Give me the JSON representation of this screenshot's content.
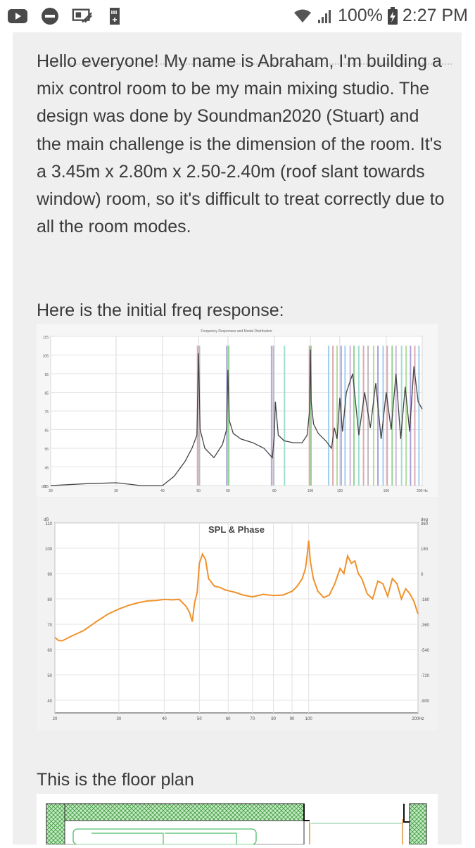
{
  "status_bar": {
    "battery": "100%",
    "time": "2:27 PM",
    "icons": [
      "youtube-icon",
      "do-not-disturb-icon",
      "vpn-icon",
      "sd-card-icon",
      "wifi-icon",
      "cellular-signal-icon",
      "battery-charging-icon"
    ]
  },
  "post": {
    "intro": "Hello everyone! My name is Abraham, I'm building a mix control room to be my main mixing studio. The design was done by Soundman2020 (Stuart) and the main challenge is the dimension of the room. It's a 3.45m x 2.80m x 2.50-2.40m (roof slant towards window) room, so it's difficult to treat correctly due to all the room modes.",
    "freq_caption": "Here is the initial freq response:",
    "floor_caption": "This is the floor plan"
  },
  "chart_data": [
    {
      "type": "line",
      "title": "Frequency Responses and Modal Distribution",
      "y_ticks": [
        "115",
        "105",
        "95",
        "85",
        "75",
        "65",
        "55",
        "45",
        "35"
      ],
      "y_corner_label": "dB",
      "x_ticks": [
        "20",
        "30",
        "40",
        "50",
        "60",
        "80",
        "100",
        "120",
        "160",
        "200 Hz"
      ],
      "ylim": [
        35,
        115
      ],
      "x_scale": "log",
      "xlim": [
        20,
        200
      ],
      "grid": true,
      "series": [
        {
          "x": [
            20,
            25,
            30,
            35,
            40,
            43,
            46,
            48,
            49.5,
            50,
            50.5,
            52,
            55,
            58,
            59.5,
            60,
            60.5,
            62,
            65,
            70,
            75,
            79,
            80,
            80.5,
            82,
            85,
            90,
            95,
            98,
            99.5,
            100,
            100.5,
            102,
            105,
            110,
            114,
            116,
            118,
            120,
            122,
            125,
            130,
            135,
            140,
            145,
            150,
            155,
            160,
            165,
            170,
            175,
            180,
            185,
            190,
            195,
            200
          ],
          "y": [
            35,
            36,
            36.5,
            35,
            35,
            40,
            48,
            55,
            62,
            106,
            65,
            55,
            50,
            57,
            65,
            97,
            70,
            63,
            60,
            58,
            55,
            50,
            62,
            80,
            62,
            59,
            58,
            58,
            62,
            75,
            108,
            80,
            68,
            63,
            59,
            55,
            66,
            60,
            82,
            64,
            85,
            95,
            62,
            85,
            66,
            90,
            60,
            85,
            65,
            95,
            60,
            88,
            64,
            99,
            80,
            76
          ]
        }
      ],
      "modal_lines": [
        {
          "x": 49.7,
          "color": "#d69aa6"
        },
        {
          "x": 50.3,
          "color": "#b0b0b0"
        },
        {
          "x": 59.6,
          "color": "#9a8fd8"
        },
        {
          "x": 60.3,
          "color": "#7fd07f"
        },
        {
          "x": 78.6,
          "color": "#b78fe0"
        },
        {
          "x": 79.5,
          "color": "#b0b0b0"
        },
        {
          "x": 85.2,
          "color": "#8ed8c8"
        },
        {
          "x": 99.4,
          "color": "#d69aa6"
        },
        {
          "x": 100.4,
          "color": "#7fd07f"
        },
        {
          "x": 112,
          "color": "#8ec8e8"
        },
        {
          "x": 115,
          "color": "#d69aa6"
        },
        {
          "x": 118,
          "color": "#a8d88a"
        },
        {
          "x": 121,
          "color": "#9a8fd8"
        },
        {
          "x": 124,
          "color": "#8ec8e8"
        },
        {
          "x": 128,
          "color": "#c8a8d8"
        },
        {
          "x": 131,
          "color": "#7fd07f"
        },
        {
          "x": 135,
          "color": "#8ed8c8"
        },
        {
          "x": 139,
          "color": "#d69aa6"
        },
        {
          "x": 143,
          "color": "#b0b0b0"
        },
        {
          "x": 148,
          "color": "#a8d88a"
        },
        {
          "x": 152,
          "color": "#9a8fd8"
        },
        {
          "x": 157,
          "color": "#8ec8e8"
        },
        {
          "x": 161,
          "color": "#d69aa6"
        },
        {
          "x": 166,
          "color": "#7fd07f"
        },
        {
          "x": 170,
          "color": "#c8a8d8"
        },
        {
          "x": 176,
          "color": "#8ed8c8"
        },
        {
          "x": 181,
          "color": "#a8d88a"
        },
        {
          "x": 186,
          "color": "#9a8fd8"
        },
        {
          "x": 191,
          "color": "#d69aa6"
        },
        {
          "x": 196,
          "color": "#8ec8e8"
        }
      ]
    },
    {
      "type": "line",
      "title": "SPL & Phase",
      "y_ticks": [
        "110",
        "100",
        "90",
        "80",
        "70",
        "60",
        "50",
        "40"
      ],
      "y_corner_label": "dB",
      "y2_ticks": [
        "360",
        "180",
        "0",
        "-180",
        "-360",
        "-540",
        "-720",
        "-900"
      ],
      "y2_corner_label": "deg",
      "x_ticks": [
        "20",
        "30",
        "40",
        "50",
        "60",
        "70",
        "80",
        "90",
        "100",
        "200Hz"
      ],
      "ylim": [
        35,
        110
      ],
      "x_scale": "log",
      "xlim": [
        20,
        200
      ],
      "grid": true,
      "series": [
        {
          "name": "SPL",
          "color": "#f0922b",
          "x": [
            20,
            20.5,
            21,
            22,
            24,
            26,
            28,
            30,
            32,
            34,
            36,
            38,
            40,
            42,
            44,
            46,
            47,
            47.8,
            48.5,
            49.3,
            50,
            51,
            52,
            53,
            55,
            57,
            59,
            61,
            63,
            66,
            70,
            75,
            80,
            85,
            90,
            93,
            96,
            98,
            99,
            100,
            101,
            103,
            106,
            110,
            114,
            118,
            122,
            125,
            128,
            131,
            134,
            137,
            140,
            145,
            150,
            155,
            160,
            165,
            170,
            175,
            180,
            185,
            190,
            195,
            200
          ],
          "y": [
            64.8,
            63.5,
            63.5,
            65,
            67.5,
            71,
            74,
            76,
            77.5,
            78.5,
            79.2,
            79.4,
            79.8,
            79.6,
            79.8,
            77,
            74.5,
            71,
            78.5,
            82.5,
            94,
            97.7,
            95.5,
            88,
            85,
            84.5,
            83.5,
            83,
            82.5,
            81.5,
            80.8,
            81.8,
            81.3,
            81.5,
            83,
            85,
            88,
            92,
            97,
            103,
            95,
            88,
            83,
            80.5,
            81.5,
            86,
            92,
            90,
            97,
            94,
            95,
            90,
            88,
            82,
            80,
            87,
            86,
            81,
            88,
            86,
            80,
            84,
            82,
            79,
            74
          ]
        }
      ]
    }
  ]
}
